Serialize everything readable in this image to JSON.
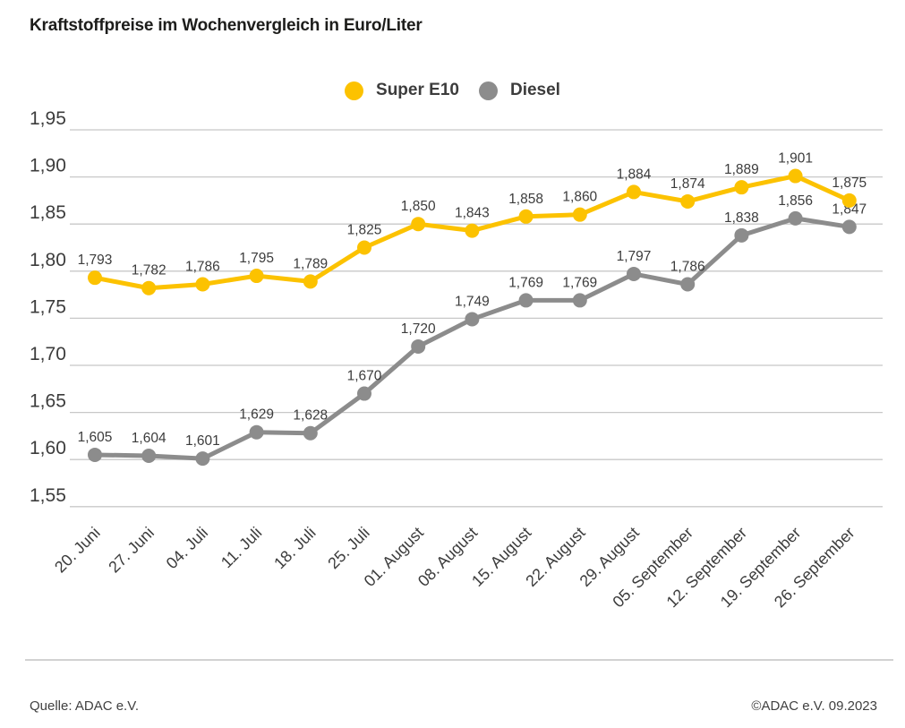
{
  "title": "Kraftstoffpreise im Wochenvergleich in Euro/Liter",
  "footer": {
    "source": "Quelle: ADAC e.V.",
    "copyright": "©ADAC e.V. 09.2023"
  },
  "colors": {
    "super_e10": "#fcc200",
    "diesel": "#8c8c8c",
    "grid": "#c8c8c8",
    "label_text": "#3c3c3c"
  },
  "chart_data": {
    "type": "line",
    "title": "Kraftstoffpreise im Wochenvergleich in Euro/Liter",
    "unit": "Euro/Liter",
    "grid": true,
    "legend_position": "top",
    "categories": [
      "20. Juni",
      "27. Juni",
      "04. Juli",
      "11. Juli",
      "18. Juli",
      "25. Juli",
      "01. August",
      "08. August",
      "15. August",
      "22. August",
      "29. August",
      "05. September",
      "12. September",
      "19. September",
      "26. September"
    ],
    "y_axis": {
      "min": 1.55,
      "max": 1.95,
      "step": 0.05,
      "tick_labels": [
        "1,95",
        "1,90",
        "1,85",
        "1,80",
        "1,75",
        "1,70",
        "1,65",
        "1,60",
        "1,55"
      ]
    },
    "series": [
      {
        "name": "Diesel",
        "color": "#8c8c8c",
        "values": [
          1.605,
          1.604,
          1.601,
          1.629,
          1.628,
          1.67,
          1.72,
          1.749,
          1.769,
          1.769,
          1.797,
          1.786,
          1.838,
          1.856,
          1.847
        ],
        "labels": [
          "1,605",
          "1,604",
          "1,601",
          "1,629",
          "1,628",
          "1,670",
          "1,720",
          "1,749",
          "1,769",
          "1,769",
          "1,797",
          "1,786",
          "1,838",
          "1,856",
          "1,847"
        ]
      },
      {
        "name": "Super E10",
        "color": "#fcc200",
        "values": [
          1.793,
          1.782,
          1.786,
          1.795,
          1.789,
          1.825,
          1.85,
          1.843,
          1.858,
          1.86,
          1.884,
          1.874,
          1.889,
          1.901,
          1.875
        ],
        "labels": [
          "1,793",
          "1,782",
          "1,786",
          "1,795",
          "1,789",
          "1,825",
          "1,850",
          "1,843",
          "1,858",
          "1,860",
          "1,884",
          "1,874",
          "1,889",
          "1,901",
          "1,875"
        ]
      }
    ]
  }
}
